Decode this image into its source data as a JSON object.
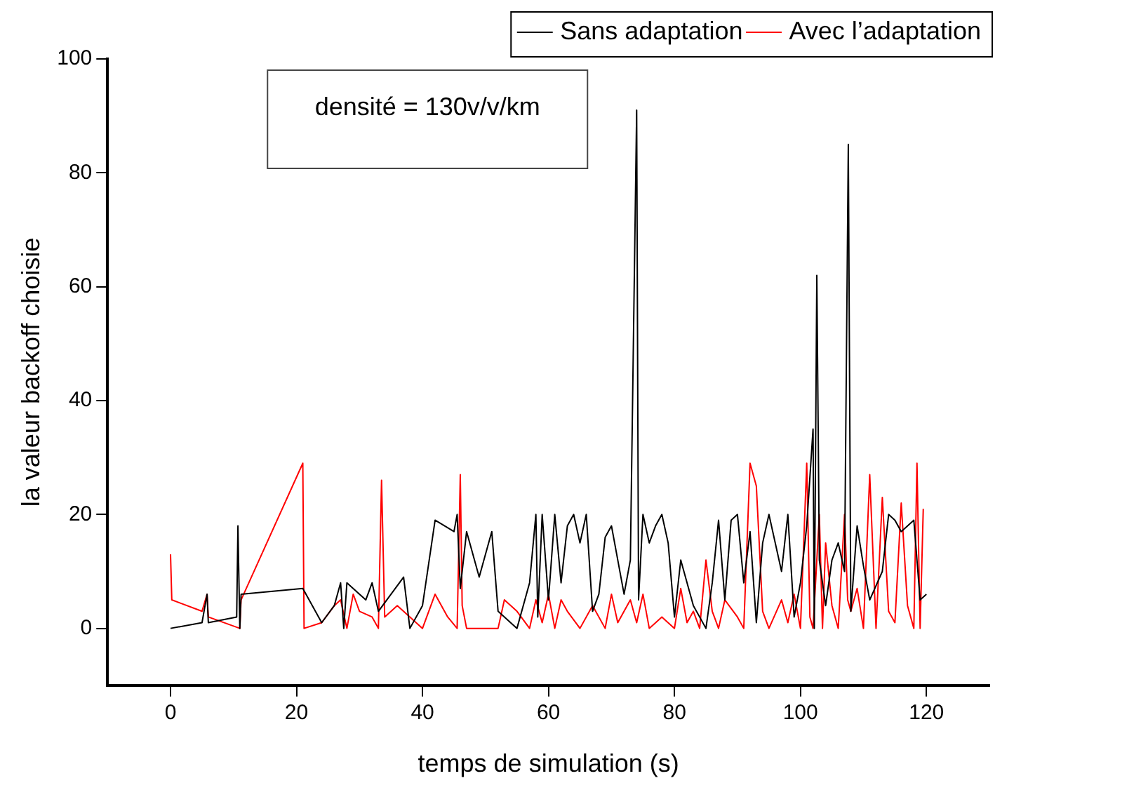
{
  "chart_data": {
    "type": "line",
    "xlabel": "temps de simulation (s)",
    "ylabel": "la valeur backoff choisie",
    "annotations": [
      "densité = 130v/v/km"
    ],
    "xlim": [
      -10,
      130
    ],
    "xticks": [
      0,
      20,
      40,
      60,
      80,
      100,
      120
    ],
    "ylim": [
      -10,
      100
    ],
    "yticks": [
      0,
      20,
      40,
      60,
      80,
      100
    ],
    "grid": false,
    "legend": "top right",
    "marker": "none",
    "line_style": "solid",
    "series": [
      {
        "name": "Sans adaptation",
        "color": "#000000",
        "x": [
          0,
          5,
          5.8,
          6,
          10.5,
          10.7,
          11,
          11.2,
          21,
          24,
          26,
          27,
          27.5,
          28,
          31,
          32,
          33,
          37,
          38,
          40,
          42,
          45,
          45.5,
          46,
          47,
          49,
          51,
          52,
          55,
          57,
          58,
          58.3,
          59,
          60,
          61,
          62,
          63,
          64,
          65,
          66,
          67,
          68,
          69,
          70,
          72,
          73,
          74,
          74.3,
          75,
          76,
          77,
          78,
          79,
          80,
          81,
          83,
          85,
          86,
          87,
          88,
          89,
          90,
          91,
          92,
          93,
          94,
          95,
          97,
          98,
          99,
          100,
          101,
          102,
          102.2,
          102.6,
          103,
          104,
          105,
          106,
          107,
          107.6,
          108,
          109,
          110,
          111,
          113,
          114,
          115,
          116,
          118,
          119,
          120
        ],
        "values": [
          0,
          1,
          6,
          1,
          2,
          18,
          0,
          6,
          7,
          1,
          4,
          8,
          0,
          8,
          5,
          8,
          3,
          9,
          0,
          4,
          19,
          17,
          20,
          7,
          17,
          9,
          17,
          3,
          0,
          8,
          20,
          2,
          20,
          5,
          20,
          8,
          18,
          20,
          15,
          20,
          3,
          6,
          16,
          18,
          6,
          12,
          91,
          5,
          20,
          15,
          18,
          20,
          15,
          2,
          12,
          4,
          0,
          8,
          19,
          5,
          19,
          20,
          8,
          17,
          1,
          15,
          20,
          10,
          20,
          2,
          8,
          18,
          35,
          0,
          62,
          12,
          4,
          12,
          15,
          10,
          85,
          3,
          18,
          11,
          5,
          10,
          20,
          19,
          17,
          19,
          5,
          6
        ]
      },
      {
        "name": "Avec l’adaptation",
        "color": "#ff0000",
        "x": [
          0,
          0.2,
          5,
          5.8,
          6,
          11,
          11.2,
          21,
          21.2,
          24,
          26,
          27,
          28,
          29,
          30,
          32,
          33,
          33.5,
          34,
          36,
          38,
          40,
          42,
          44,
          45.5,
          46,
          46.3,
          47,
          52,
          53,
          55,
          57,
          58,
          59,
          60,
          61,
          62,
          63,
          65,
          67,
          69,
          70,
          71,
          73,
          74,
          75,
          76,
          78,
          80,
          81,
          82,
          83,
          84,
          85,
          86,
          87,
          88,
          90,
          91,
          92,
          93,
          94,
          95,
          97,
          98,
          99,
          100,
          101,
          101.5,
          102,
          103,
          103.5,
          104,
          105,
          106,
          107,
          107.5,
          108,
          109,
          110,
          111,
          112,
          113,
          114,
          115,
          116,
          117,
          118,
          118.5,
          119,
          119.5
        ],
        "values": [
          13,
          5,
          3,
          6,
          2,
          0,
          5,
          29,
          0,
          1,
          4,
          5,
          0,
          6,
          3,
          2,
          0,
          26,
          2,
          4,
          2,
          0,
          6,
          2,
          0,
          27,
          4,
          0,
          0,
          5,
          3,
          0,
          5,
          1,
          6,
          0,
          5,
          3,
          0,
          4,
          0,
          6,
          1,
          5,
          1,
          6,
          0,
          2,
          0,
          7,
          1,
          3,
          0,
          12,
          3,
          0,
          5,
          2,
          0,
          29,
          25,
          3,
          0,
          5,
          1,
          6,
          0,
          29,
          2,
          0,
          20,
          0,
          15,
          4,
          0,
          20,
          5,
          3,
          7,
          0,
          27,
          0,
          23,
          3,
          1,
          22,
          4,
          0,
          29,
          0,
          21
        ]
      }
    ]
  }
}
